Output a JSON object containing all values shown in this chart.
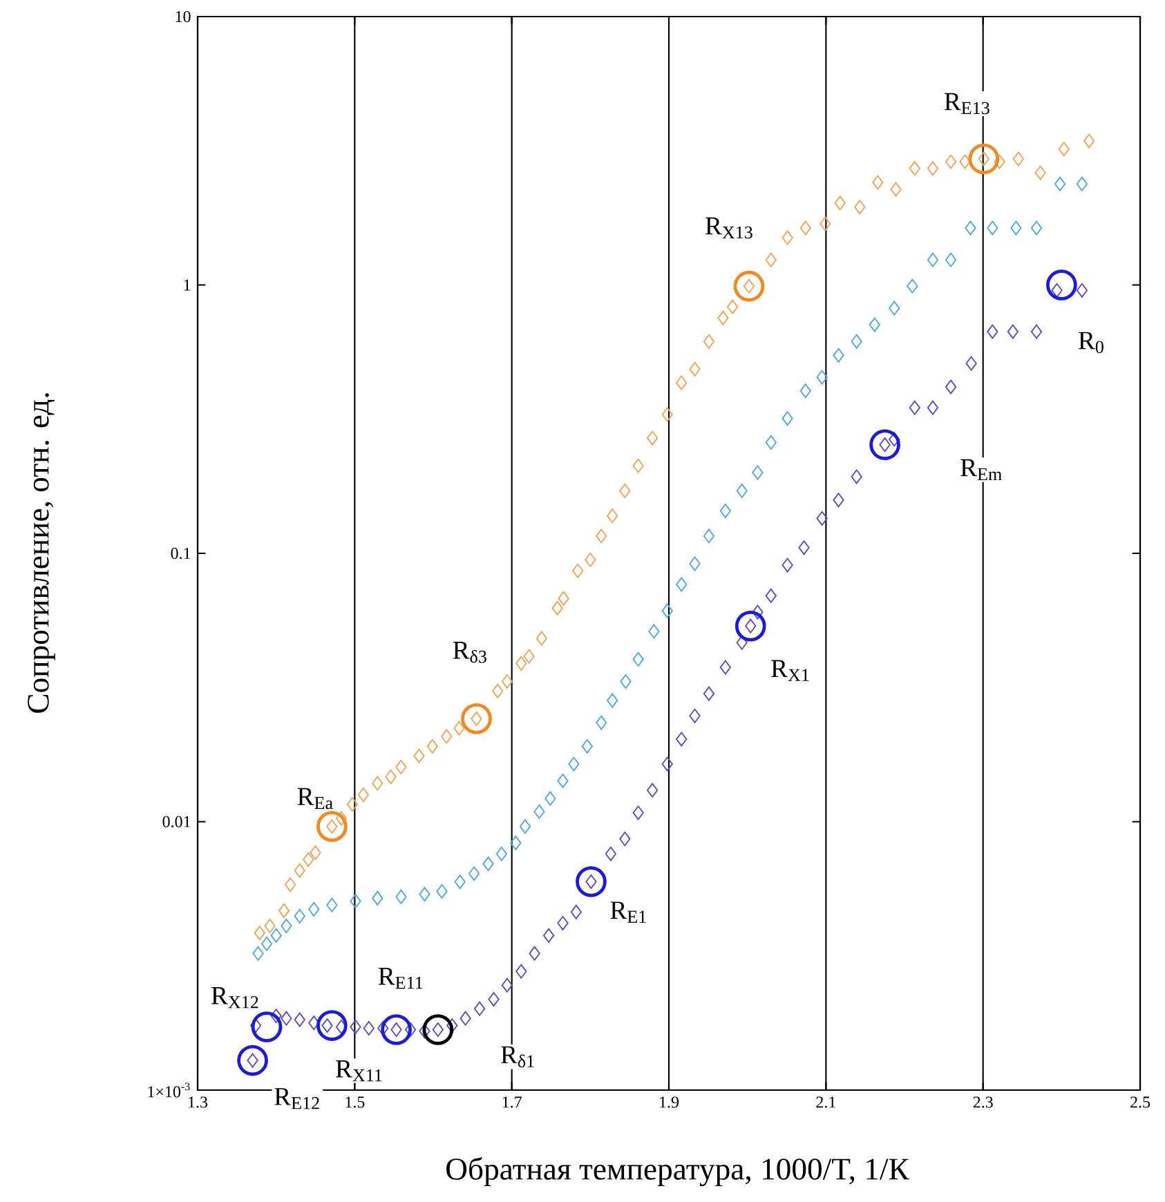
{
  "chart_data": {
    "type": "scatter",
    "xlabel": "Обратная температура, 1000/T, 1/К",
    "ylabel": "Сопротивление, отн. ед.",
    "log": "y",
    "grid": "x",
    "xlim": [
      1.3,
      2.5
    ],
    "ylim": [
      0.001,
      10
    ],
    "xticks": [
      1.3,
      1.5,
      1.7,
      1.9,
      2.1,
      2.3,
      2.5
    ],
    "yticks": [
      {
        "value": 0.001,
        "label": "1×10$^{-3}$"
      },
      0.01,
      0.1,
      1,
      10
    ],
    "series": [
      {
        "marker": "diamond",
        "color": "#eca55a",
        "x": [
          1.379,
          1.392,
          1.41,
          1.418,
          1.43,
          1.441,
          1.45,
          1.471,
          1.483,
          1.497,
          1.511,
          1.529,
          1.546,
          1.559,
          1.582,
          1.599,
          1.617,
          1.633,
          1.655,
          1.682,
          1.694,
          1.712,
          1.722,
          1.738,
          1.758,
          1.766,
          1.784,
          1.8,
          1.814,
          1.828,
          1.844,
          1.861,
          1.879,
          1.898,
          1.916,
          1.933,
          1.951,
          1.969,
          1.981,
          2.002,
          2.03,
          2.051,
          2.074,
          2.099,
          2.118,
          2.143,
          2.166,
          2.189,
          2.213,
          2.236,
          2.259,
          2.277,
          2.301,
          2.321,
          2.345,
          2.373,
          2.403,
          2.435
        ],
        "values": [
          0.00385,
          0.00409,
          0.00466,
          0.00583,
          0.00658,
          0.00723,
          0.00767,
          0.0096,
          0.0103,
          0.0116,
          0.0126,
          0.0139,
          0.0147,
          0.016,
          0.0176,
          0.0191,
          0.0208,
          0.0223,
          0.0242,
          0.0307,
          0.0333,
          0.0389,
          0.0413,
          0.0482,
          0.0625,
          0.0679,
          0.0861,
          0.0946,
          0.116,
          0.138,
          0.171,
          0.212,
          0.269,
          0.329,
          0.432,
          0.486,
          0.616,
          0.754,
          0.829,
          0.99,
          1.24,
          1.5,
          1.63,
          1.69,
          2.02,
          1.95,
          2.41,
          2.27,
          2.72,
          2.72,
          2.88,
          2.88,
          2.95,
          2.88,
          2.95,
          2.62,
          3.21,
          3.44
        ]
      },
      {
        "marker": "diamond",
        "color": "#52a8dc",
        "x": [
          1.377,
          1.388,
          1.4,
          1.413,
          1.43,
          1.448,
          1.471,
          1.501,
          1.529,
          1.559,
          1.589,
          1.611,
          1.634,
          1.652,
          1.67,
          1.687,
          1.705,
          1.717,
          1.735,
          1.749,
          1.765,
          1.779,
          1.796,
          1.814,
          1.828,
          1.845,
          1.861,
          1.881,
          1.898,
          1.916,
          1.933,
          1.951,
          1.972,
          1.993,
          2.013,
          2.03,
          2.051,
          2.074,
          2.095,
          2.116,
          2.139,
          2.162,
          2.187,
          2.21,
          2.236,
          2.259,
          2.284,
          2.312,
          2.342,
          2.368,
          2.398,
          2.426
        ],
        "values": [
          0.00323,
          0.00351,
          0.00377,
          0.00409,
          0.00445,
          0.00472,
          0.00489,
          0.00506,
          0.00519,
          0.00525,
          0.00537,
          0.0055,
          0.00597,
          0.00641,
          0.00697,
          0.00759,
          0.00834,
          0.0096,
          0.0109,
          0.0122,
          0.0142,
          0.0164,
          0.0191,
          0.0234,
          0.0283,
          0.0333,
          0.0403,
          0.0512,
          0.0611,
          0.0766,
          0.0915,
          0.116,
          0.144,
          0.171,
          0.2,
          0.259,
          0.318,
          0.403,
          0.453,
          0.547,
          0.616,
          0.711,
          0.819,
          0.99,
          1.24,
          1.24,
          1.63,
          1.63,
          1.63,
          1.63,
          2.38,
          2.38
        ]
      },
      {
        "marker": "diamond",
        "color": "#5a4fb8",
        "x": [
          1.37,
          1.374,
          1.4,
          1.413,
          1.43,
          1.448,
          1.465,
          1.483,
          1.501,
          1.518,
          1.536,
          1.553,
          1.571,
          1.589,
          1.606,
          1.624,
          1.641,
          1.659,
          1.677,
          1.694,
          1.712,
          1.729,
          1.747,
          1.765,
          1.782,
          1.801,
          1.826,
          1.844,
          1.861,
          1.879,
          1.898,
          1.916,
          1.933,
          1.951,
          1.972,
          1.993,
          2.004,
          2.013,
          2.03,
          2.051,
          2.072,
          2.095,
          2.116,
          2.139,
          2.175,
          2.187,
          2.213,
          2.236,
          2.259,
          2.285,
          2.312,
          2.338,
          2.368,
          2.394,
          2.426
        ],
        "values": [
          0.00129,
          0.00174,
          0.00189,
          0.00185,
          0.00183,
          0.00178,
          0.00174,
          0.00172,
          0.00172,
          0.0017,
          0.0017,
          0.00168,
          0.00168,
          0.00166,
          0.00168,
          0.00174,
          0.00185,
          0.00201,
          0.00218,
          0.00246,
          0.00277,
          0.00323,
          0.00377,
          0.00419,
          0.00461,
          0.00598,
          0.00759,
          0.00863,
          0.0108,
          0.0131,
          0.0164,
          0.0203,
          0.0248,
          0.03,
          0.0376,
          0.0465,
          0.0536,
          0.0604,
          0.0695,
          0.0904,
          0.105,
          0.135,
          0.158,
          0.193,
          0.254,
          0.266,
          0.349,
          0.349,
          0.417,
          0.51,
          0.67,
          0.67,
          0.67,
          0.955,
          0.955
        ]
      },
      {
        "marker": "circle",
        "color": "#f08a24",
        "x": [
          1.471,
          1.655,
          2.002,
          2.301
        ],
        "values": [
          0.0096,
          0.0242,
          0.99,
          2.95
        ]
      },
      {
        "marker": "circle",
        "color": "#1c1cd8",
        "x": [
          1.37,
          1.388,
          1.471,
          1.553,
          1.801,
          2.004,
          2.175,
          2.4
        ],
        "values": [
          0.00129,
          0.00172,
          0.00174,
          0.00168,
          0.00598,
          0.0536,
          0.254,
          1.0
        ]
      },
      {
        "marker": "circle",
        "color": "#000000",
        "x": [
          1.606
        ],
        "values": [
          0.00168
        ]
      }
    ],
    "annotations": [
      {
        "text": "R$_{Ea}$",
        "x": 1.45,
        "y": 0.0122
      },
      {
        "text": "R$_{δ3}$",
        "x": 1.647,
        "y": 0.0428
      },
      {
        "text": "R$_{X13}$",
        "x": 1.977,
        "y": 1.63
      },
      {
        "text": "R$_{E13}$",
        "x": 2.28,
        "y": 4.74
      },
      {
        "text": "R$_{0}$",
        "x": 2.438,
        "y": 0.61
      },
      {
        "text": "R$_{Em}$",
        "x": 2.298,
        "y": 0.205
      },
      {
        "text": "R$_{X1}$",
        "x": 2.055,
        "y": 0.0366
      },
      {
        "text": "R$_{E1}$",
        "x": 1.849,
        "y": 0.0046
      },
      {
        "text": "R$_{X12}$",
        "x": 1.348,
        "y": 0.00221
      },
      {
        "text": "R$_{E12}$",
        "x": 1.427,
        "y": 0.00093
      },
      {
        "text": "R$_{X11}$",
        "x": 1.506,
        "y": 0.00118
      },
      {
        "text": "R$_{E11}$",
        "x": 1.559,
        "y": 0.00261
      },
      {
        "text": "R$_{δ1}$",
        "x": 1.708,
        "y": 0.00133
      }
    ]
  }
}
